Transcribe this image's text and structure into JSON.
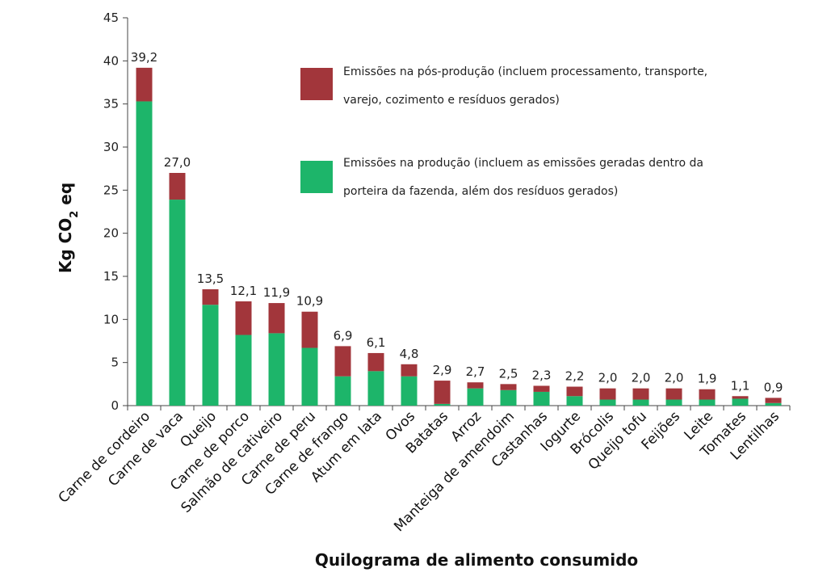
{
  "chart_data": {
    "type": "bar",
    "stacked": true,
    "ylabel": "Kg CO",
    "ylabel_sub": "2",
    "ylabel_suffix": " eq",
    "xlabel": "Quilograma de alimento consumido",
    "ylim": [
      0,
      45
    ],
    "yticks": [
      "0",
      "5",
      "10",
      "15",
      "20",
      "25",
      "30",
      "35",
      "40",
      "45"
    ],
    "yticks_values": [
      0,
      5,
      10,
      15,
      20,
      25,
      30,
      35,
      40,
      45
    ],
    "categories": [
      "Carne de cordeiro",
      "Carne de vaca",
      "Queijo",
      "Carne de porco",
      "Salmão de cativeiro",
      "Carne de peru",
      "Carne de frango",
      "Atum em lata",
      "Ovos",
      "Batatas",
      "Arroz",
      "Manteiga de amendoim",
      "Castanhas",
      "Iogurte",
      "Brócolis",
      "Queijo tofu",
      "Feijões",
      "Leite",
      "Tomates",
      "Lentilhas"
    ],
    "totals_labels": [
      "39,2",
      "27,0",
      "13,5",
      "12,1",
      "11,9",
      "10,9",
      "6,9",
      "6,1",
      "4,8",
      "2,9",
      "2,7",
      "2,5",
      "2,3",
      "2,2",
      "2,0",
      "2,0",
      "2,0",
      "1,9",
      "1,1",
      "0,9"
    ],
    "series": [
      {
        "name": "Emissões na produção (incluem as emissões geradas dentro da porteira da fazenda, além dos resíduos gerados)",
        "color": "#1db56a",
        "values": [
          35.3,
          23.9,
          11.7,
          8.2,
          8.4,
          6.7,
          3.4,
          4.0,
          3.4,
          0.2,
          2.0,
          1.8,
          1.6,
          1.1,
          0.7,
          0.7,
          0.7,
          0.7,
          0.8,
          0.3
        ]
      },
      {
        "name": "Emissões na pós-produção (incluem processamento, transporte, varejo, cozimento e resíduos gerados)",
        "color": "#a2363b",
        "values": [
          3.9,
          3.1,
          1.8,
          3.9,
          3.5,
          4.2,
          3.5,
          2.1,
          1.4,
          2.7,
          0.7,
          0.7,
          0.7,
          1.1,
          1.3,
          1.3,
          1.3,
          1.2,
          0.3,
          0.6
        ]
      }
    ],
    "legend": {
      "post": {
        "line1": "Emissões na pós-produção (incluem processamento, transporte,",
        "line2": "varejo, cozimento e resíduos gerados)",
        "color": "#a2363b"
      },
      "prod": {
        "line1": "Emissões na produção (incluem as emissões geradas dentro da",
        "line2": "porteira da fazenda, além dos resíduos gerados)",
        "color": "#1db56a"
      }
    }
  }
}
